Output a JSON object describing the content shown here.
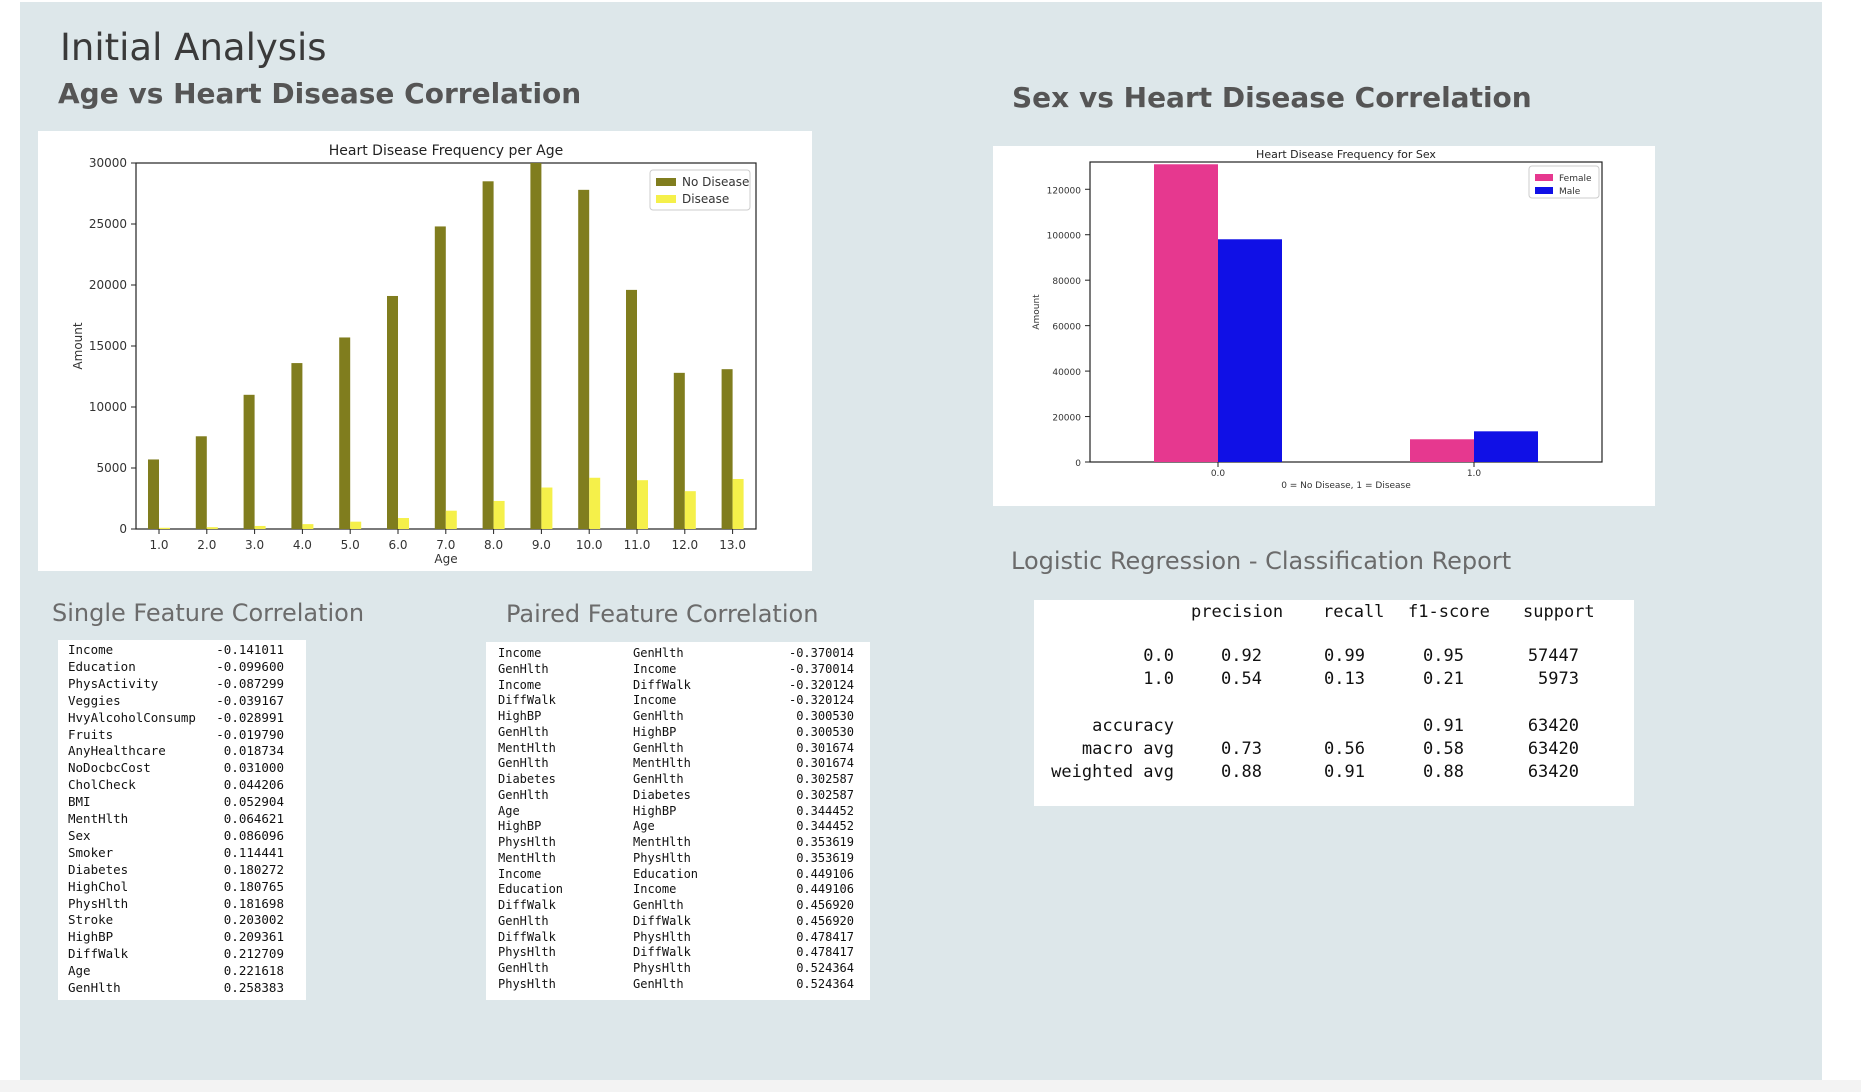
{
  "dashboard": {
    "title": "Initial Analysis"
  },
  "age_section": {
    "title": "Age vs Heart Disease Correlation"
  },
  "sex_section": {
    "title": "Sex vs Heart Disease Correlation"
  },
  "single_section": {
    "title": "Single Feature Correlation"
  },
  "paired_section": {
    "title": "Paired Feature Correlation"
  },
  "report_section": {
    "title": "Logistic Regression - Classification Report"
  },
  "colors": {
    "no_disease": "#807d1e",
    "disease": "#f5f04a",
    "female": "#e6388f",
    "male": "#1010e6"
  },
  "chart_data": [
    {
      "type": "bar",
      "title": "Heart Disease Frequency per Age",
      "xlabel": "Age",
      "ylabel": "Amount",
      "categories": [
        "1.0",
        "2.0",
        "3.0",
        "4.0",
        "5.0",
        "6.0",
        "7.0",
        "8.0",
        "9.0",
        "10.0",
        "11.0",
        "12.0",
        "13.0"
      ],
      "yticks": [
        "0",
        "5000",
        "10000",
        "15000",
        "20000",
        "25000",
        "30000"
      ],
      "ylim": [
        0,
        30000
      ],
      "legend": "top-right",
      "series": [
        {
          "name": "No Disease",
          "values": [
            5700,
            7600,
            11000,
            13600,
            15700,
            19100,
            24800,
            28500,
            30000,
            27800,
            19600,
            12800,
            13100
          ]
        },
        {
          "name": "Disease",
          "values": [
            100,
            150,
            250,
            400,
            600,
            900,
            1500,
            2300,
            3400,
            4200,
            4000,
            3100,
            4100
          ]
        }
      ]
    },
    {
      "type": "bar",
      "title": "Heart Disease Frequency for Sex",
      "xlabel": "0 = No Disease, 1 = Disease",
      "ylabel": "Amount",
      "categories": [
        "0.0",
        "1.0"
      ],
      "yticks": [
        "0",
        "20000",
        "40000",
        "60000",
        "80000",
        "100000",
        "120000"
      ],
      "ylim": [
        0,
        132000
      ],
      "legend": "top-right",
      "series": [
        {
          "name": "Female",
          "values": [
            131000,
            10000
          ]
        },
        {
          "name": "Male",
          "values": [
            98000,
            13500
          ]
        }
      ]
    }
  ],
  "single_correlation": [
    {
      "feature": "Income",
      "value": "-0.141011"
    },
    {
      "feature": "Education",
      "value": "-0.099600"
    },
    {
      "feature": "PhysActivity",
      "value": "-0.087299"
    },
    {
      "feature": "Veggies",
      "value": "-0.039167"
    },
    {
      "feature": "HvyAlcoholConsump",
      "value": "-0.028991"
    },
    {
      "feature": "Fruits",
      "value": "-0.019790"
    },
    {
      "feature": "AnyHealthcare",
      "value": "0.018734"
    },
    {
      "feature": "NoDocbcCost",
      "value": "0.031000"
    },
    {
      "feature": "CholCheck",
      "value": "0.044206"
    },
    {
      "feature": "BMI",
      "value": "0.052904"
    },
    {
      "feature": "MentHlth",
      "value": "0.064621"
    },
    {
      "feature": "Sex",
      "value": "0.086096"
    },
    {
      "feature": "Smoker",
      "value": "0.114441"
    },
    {
      "feature": "Diabetes",
      "value": "0.180272"
    },
    {
      "feature": "HighChol",
      "value": "0.180765"
    },
    {
      "feature": "PhysHlth",
      "value": "0.181698"
    },
    {
      "feature": "Stroke",
      "value": "0.203002"
    },
    {
      "feature": "HighBP",
      "value": "0.209361"
    },
    {
      "feature": "DiffWalk",
      "value": "0.212709"
    },
    {
      "feature": "Age",
      "value": "0.221618"
    },
    {
      "feature": "GenHlth",
      "value": "0.258383"
    }
  ],
  "paired_correlation": [
    {
      "a": "Income",
      "b": "GenHlth",
      "value": "-0.370014"
    },
    {
      "a": "GenHlth",
      "b": "Income",
      "value": "-0.370014"
    },
    {
      "a": "Income",
      "b": "DiffWalk",
      "value": "-0.320124"
    },
    {
      "a": "DiffWalk",
      "b": "Income",
      "value": "-0.320124"
    },
    {
      "a": "HighBP",
      "b": "GenHlth",
      "value": "0.300530"
    },
    {
      "a": "GenHlth",
      "b": "HighBP",
      "value": "0.300530"
    },
    {
      "a": "MentHlth",
      "b": "GenHlth",
      "value": "0.301674"
    },
    {
      "a": "GenHlth",
      "b": "MentHlth",
      "value": "0.301674"
    },
    {
      "a": "Diabetes",
      "b": "GenHlth",
      "value": "0.302587"
    },
    {
      "a": "GenHlth",
      "b": "Diabetes",
      "value": "0.302587"
    },
    {
      "a": "Age",
      "b": "HighBP",
      "value": "0.344452"
    },
    {
      "a": "HighBP",
      "b": "Age",
      "value": "0.344452"
    },
    {
      "a": "PhysHlth",
      "b": "MentHlth",
      "value": "0.353619"
    },
    {
      "a": "MentHlth",
      "b": "PhysHlth",
      "value": "0.353619"
    },
    {
      "a": "Income",
      "b": "Education",
      "value": "0.449106"
    },
    {
      "a": "Education",
      "b": "Income",
      "value": "0.449106"
    },
    {
      "a": "DiffWalk",
      "b": "GenHlth",
      "value": "0.456920"
    },
    {
      "a": "GenHlth",
      "b": "DiffWalk",
      "value": "0.456920"
    },
    {
      "a": "DiffWalk",
      "b": "PhysHlth",
      "value": "0.478417"
    },
    {
      "a": "PhysHlth",
      "b": "DiffWalk",
      "value": "0.478417"
    },
    {
      "a": "GenHlth",
      "b": "PhysHlth",
      "value": "0.524364"
    },
    {
      "a": "PhysHlth",
      "b": "GenHlth",
      "value": "0.524364"
    }
  ],
  "report": {
    "headers": [
      "precision",
      "recall",
      "f1-score",
      "support"
    ],
    "rows": [
      {
        "label": "0.0",
        "precision": "0.92",
        "recall": "0.99",
        "f1": "0.95",
        "support": "57447"
      },
      {
        "label": "1.0",
        "precision": "0.54",
        "recall": "0.13",
        "f1": "0.21",
        "support": "5973"
      },
      {
        "label": "accuracy",
        "precision": "",
        "recall": "",
        "f1": "0.91",
        "support": "63420"
      },
      {
        "label": "macro avg",
        "precision": "0.73",
        "recall": "0.56",
        "f1": "0.58",
        "support": "63420"
      },
      {
        "label": "weighted avg",
        "precision": "0.88",
        "recall": "0.91",
        "f1": "0.88",
        "support": "63420"
      }
    ]
  }
}
